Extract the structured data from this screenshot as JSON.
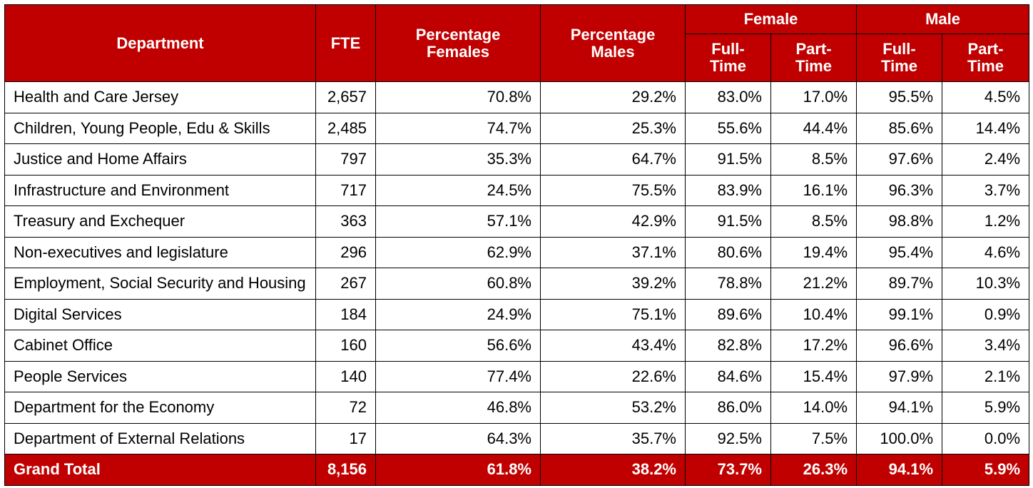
{
  "headers": {
    "department": "Department",
    "fte": "FTE",
    "pct_females": "Percentage Females",
    "pct_males": "Percentage Males",
    "female": "Female",
    "male": "Male",
    "full_time": "Full-Time",
    "part_time": "Part-Time"
  },
  "rows": [
    {
      "department": "Health and Care Jersey",
      "fte": "2,657",
      "pct_f": "70.8%",
      "pct_m": "29.2%",
      "f_ft": "83.0%",
      "f_pt": "17.0%",
      "m_ft": "95.5%",
      "m_pt": "4.5%"
    },
    {
      "department": "Children, Young People, Edu & Skills",
      "fte": "2,485",
      "pct_f": "74.7%",
      "pct_m": "25.3%",
      "f_ft": "55.6%",
      "f_pt": "44.4%",
      "m_ft": "85.6%",
      "m_pt": "14.4%"
    },
    {
      "department": "Justice and Home Affairs",
      "fte": "797",
      "pct_f": "35.3%",
      "pct_m": "64.7%",
      "f_ft": "91.5%",
      "f_pt": "8.5%",
      "m_ft": "97.6%",
      "m_pt": "2.4%"
    },
    {
      "department": "Infrastructure and Environment",
      "fte": "717",
      "pct_f": "24.5%",
      "pct_m": "75.5%",
      "f_ft": "83.9%",
      "f_pt": "16.1%",
      "m_ft": "96.3%",
      "m_pt": "3.7%"
    },
    {
      "department": "Treasury and Exchequer",
      "fte": "363",
      "pct_f": "57.1%",
      "pct_m": "42.9%",
      "f_ft": "91.5%",
      "f_pt": "8.5%",
      "m_ft": "98.8%",
      "m_pt": "1.2%"
    },
    {
      "department": "Non-executives and legislature",
      "fte": "296",
      "pct_f": "62.9%",
      "pct_m": "37.1%",
      "f_ft": "80.6%",
      "f_pt": "19.4%",
      "m_ft": "95.4%",
      "m_pt": "4.6%"
    },
    {
      "department": "Employment, Social Security and Housing",
      "fte": "267",
      "pct_f": "60.8%",
      "pct_m": "39.2%",
      "f_ft": "78.8%",
      "f_pt": "21.2%",
      "m_ft": "89.7%",
      "m_pt": "10.3%"
    },
    {
      "department": "Digital Services",
      "fte": "184",
      "pct_f": "24.9%",
      "pct_m": "75.1%",
      "f_ft": "89.6%",
      "f_pt": "10.4%",
      "m_ft": "99.1%",
      "m_pt": "0.9%"
    },
    {
      "department": "Cabinet Office",
      "fte": "160",
      "pct_f": "56.6%",
      "pct_m": "43.4%",
      "f_ft": "82.8%",
      "f_pt": "17.2%",
      "m_ft": "96.6%",
      "m_pt": "3.4%"
    },
    {
      "department": "People Services",
      "fte": "140",
      "pct_f": "77.4%",
      "pct_m": "22.6%",
      "f_ft": "84.6%",
      "f_pt": "15.4%",
      "m_ft": "97.9%",
      "m_pt": "2.1%"
    },
    {
      "department": "Department for the Economy",
      "fte": "72",
      "pct_f": "46.8%",
      "pct_m": "53.2%",
      "f_ft": "86.0%",
      "f_pt": "14.0%",
      "m_ft": "94.1%",
      "m_pt": "5.9%"
    },
    {
      "department": "Department of External Relations",
      "fte": "17",
      "pct_f": "64.3%",
      "pct_m": "35.7%",
      "f_ft": "92.5%",
      "f_pt": "7.5%",
      "m_ft": "100.0%",
      "m_pt": "0.0%"
    }
  ],
  "total": {
    "department": "Grand Total",
    "fte": "8,156",
    "pct_f": "61.8%",
    "pct_m": "38.2%",
    "f_ft": "73.7%",
    "f_pt": "26.3%",
    "m_ft": "94.1%",
    "m_pt": "5.9%"
  },
  "colors": {
    "header_red": "#c00000",
    "border": "#000000"
  }
}
